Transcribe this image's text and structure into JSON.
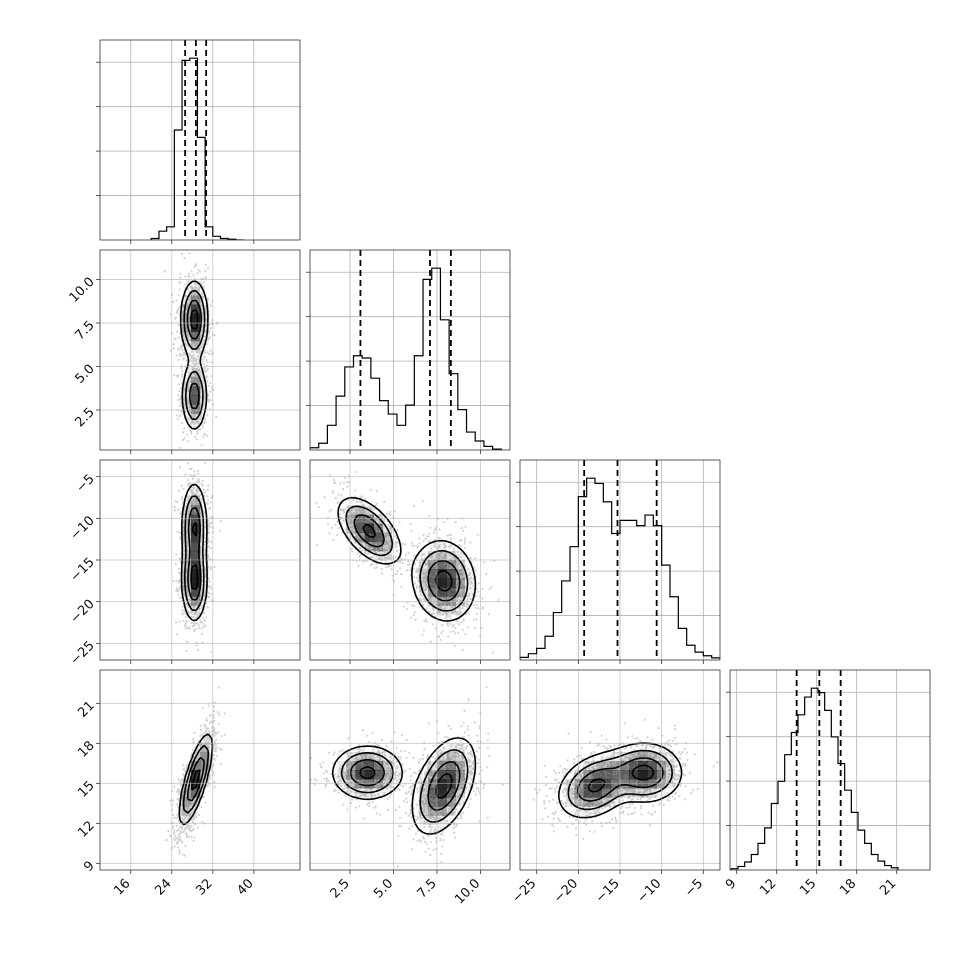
{
  "chart_data": {
    "type": "corner",
    "grid": true,
    "colors": {
      "line": "#000000",
      "scatter": "#808080",
      "grid": "#b0b0b0"
    },
    "parameters": [
      {
        "range": [
          10,
          49
        ],
        "ticks": [
          16,
          24,
          32,
          40
        ],
        "tick_labels": [
          "16",
          "24",
          "32",
          "40"
        ],
        "quantiles": [
          26.6,
          28.7,
          30.7
        ]
      },
      {
        "range": [
          0.2,
          11.7
        ],
        "ticks": [
          2.5,
          5.0,
          7.5,
          10.0
        ],
        "tick_labels": [
          "2.5",
          "5.0",
          "7.5",
          "10.0"
        ],
        "quantiles": [
          3.1,
          7.1,
          8.3
        ]
      },
      {
        "range": [
          -27,
          -3
        ],
        "ticks": [
          -25,
          -20,
          -15,
          -10,
          -5
        ],
        "tick_labels": [
          "−25",
          "−20",
          "−15",
          "−10",
          "−5"
        ],
        "quantiles": [
          -19.3,
          -15.3,
          -10.6
        ]
      },
      {
        "range": [
          8.5,
          23.5
        ],
        "ticks": [
          9,
          12,
          15,
          18,
          21
        ],
        "tick_labels": [
          "9",
          "12",
          "15",
          "18",
          "21"
        ],
        "quantiles": [
          13.5,
          15.2,
          16.8
        ]
      }
    ],
    "histograms": [
      {
        "param": 0,
        "bin_edges": [
          20,
          21.5,
          23,
          24.5,
          26,
          27.5,
          29,
          30.5,
          32,
          33.5,
          35,
          36.5,
          38
        ],
        "counts": [
          2,
          12,
          18,
          150,
          245,
          248,
          140,
          18,
          5,
          2,
          1,
          0
        ]
      },
      {
        "param": 1,
        "bin_edges": [
          0.2,
          0.7,
          1.2,
          1.7,
          2.2,
          2.7,
          3.2,
          3.7,
          4.2,
          4.7,
          5.2,
          5.7,
          6.2,
          6.7,
          7.2,
          7.7,
          8.2,
          8.7,
          9.2,
          9.7,
          10.2,
          10.7,
          11.2
        ],
        "counts": [
          5,
          15,
          55,
          120,
          185,
          210,
          205,
          160,
          110,
          80,
          55,
          100,
          210,
          380,
          405,
          290,
          170,
          90,
          40,
          20,
          8,
          2
        ]
      },
      {
        "param": 2,
        "bin_edges": [
          -27,
          -26,
          -25,
          -24,
          -23,
          -22,
          -21,
          -20,
          -19,
          -18,
          -17,
          -16,
          -15,
          -14,
          -13,
          -12,
          -11,
          -10,
          -9,
          -8,
          -7,
          -6,
          -5,
          -4,
          -3
        ],
        "counts": [
          5,
          12,
          22,
          45,
          90,
          150,
          215,
          310,
          345,
          335,
          300,
          240,
          265,
          265,
          255,
          275,
          255,
          180,
          120,
          60,
          28,
          15,
          8,
          4
        ]
      },
      {
        "param": 3,
        "bin_edges": [
          8.6,
          9.1,
          9.6,
          10.1,
          10.6,
          11.1,
          11.6,
          12.1,
          12.6,
          13.1,
          13.6,
          14.1,
          14.6,
          15.1,
          15.6,
          16.1,
          16.6,
          17.1,
          17.6,
          18.1,
          18.6,
          19.1,
          19.6,
          20.1,
          20.6,
          21.1
        ],
        "counts": [
          3,
          8,
          18,
          35,
          60,
          95,
          150,
          200,
          260,
          310,
          350,
          390,
          410,
          400,
          360,
          300,
          240,
          180,
          130,
          90,
          60,
          35,
          20,
          10,
          5
        ]
      }
    ],
    "pairs": [
      {
        "x": 0,
        "y": 1,
        "modes": [
          {
            "center": [
              28.4,
              7.7
            ],
            "sigma": [
              1.3,
              1.1
            ],
            "rho": 0.0,
            "weight": 0.6
          },
          {
            "center": [
              28.4,
              3.3
            ],
            "sigma": [
              1.2,
              1.0
            ],
            "rho": 0.0,
            "weight": 0.4
          }
        ]
      },
      {
        "x": 0,
        "y": 2,
        "modes": [
          {
            "center": [
              28.4,
              -11.0
            ],
            "sigma": [
              1.2,
              2.6
            ],
            "rho": 0.0,
            "weight": 0.5
          },
          {
            "center": [
              28.4,
              -17.5
            ],
            "sigma": [
              1.2,
              2.4
            ],
            "rho": 0.0,
            "weight": 0.5
          }
        ]
      },
      {
        "x": 0,
        "y": 3,
        "modes": [
          {
            "center": [
              28.7,
              15.3
            ],
            "sigma": [
              1.6,
              1.7
            ],
            "rho": 0.75,
            "weight": 1.0
          }
        ]
      },
      {
        "x": 1,
        "y": 2,
        "modes": [
          {
            "center": [
              3.6,
              -11.5
            ],
            "sigma": [
              0.9,
              2.0
            ],
            "rho": -0.55,
            "weight": 0.4
          },
          {
            "center": [
              7.9,
              -17.5
            ],
            "sigma": [
              0.9,
              2.4
            ],
            "rho": -0.1,
            "weight": 0.6
          }
        ]
      },
      {
        "x": 1,
        "y": 3,
        "modes": [
          {
            "center": [
              3.5,
              15.8
            ],
            "sigma": [
              1.0,
              1.0
            ],
            "rho": 0.0,
            "weight": 0.4
          },
          {
            "center": [
              7.9,
              14.8
            ],
            "sigma": [
              0.9,
              1.8
            ],
            "rho": 0.45,
            "weight": 0.6
          }
        ]
      },
      {
        "x": 2,
        "y": 3,
        "modes": [
          {
            "center": [
              -18.0,
              14.8
            ],
            "sigma": [
              2.2,
              1.2
            ],
            "rho": 0.3,
            "weight": 0.5
          },
          {
            "center": [
              -12.0,
              15.8
            ],
            "sigma": [
              2.2,
              1.1
            ],
            "rho": 0.0,
            "weight": 0.5
          }
        ]
      }
    ],
    "contour_levels": [
      0.5,
      1.0,
      1.5,
      2.0
    ]
  }
}
